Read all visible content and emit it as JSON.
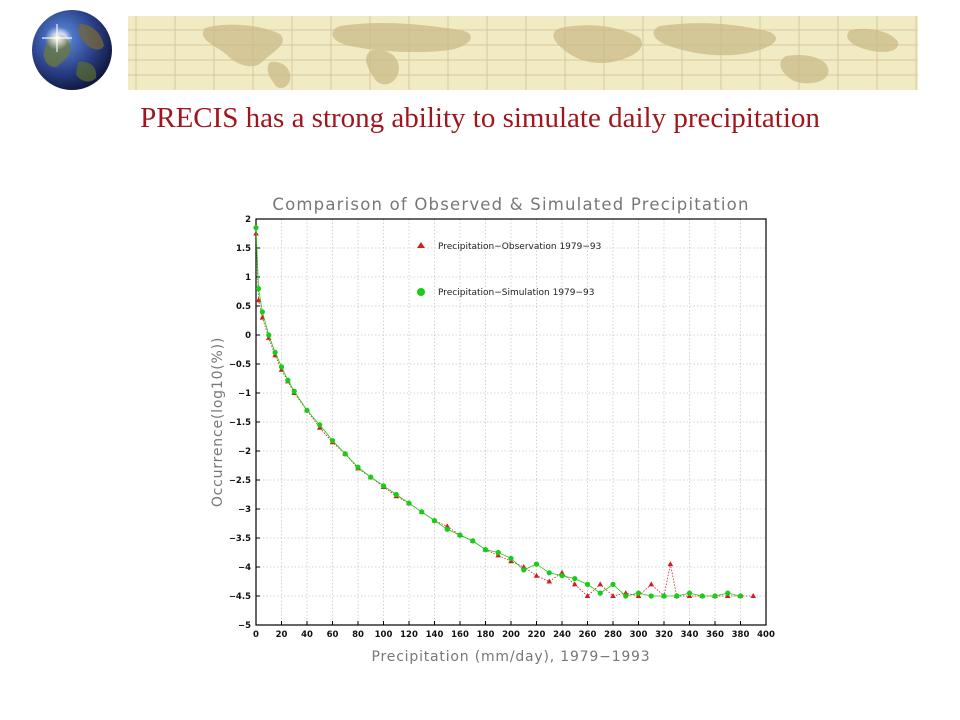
{
  "slide": {
    "title": "PRECIS has a strong ability to simulate daily precipitation"
  },
  "colors": {
    "title": "#a0161e",
    "observation": "#d11f1f",
    "simulation": "#18cc18",
    "banner_bg": "#f1ebc4",
    "banner_line": "#d8c79a",
    "banner_land": "#c9b885"
  },
  "icons": {
    "logo": "globe-icon"
  },
  "chart_data": {
    "type": "scatter",
    "title": "Comparison of Observed & Simulated Precipitation",
    "xlabel": "Precipitation (mm/day), 1979−1993",
    "ylabel": "Occurrence(log10(%))",
    "xlim": [
      0,
      400
    ],
    "ylim": [
      -5,
      2
    ],
    "xticks": [
      "0",
      "20",
      "40",
      "60",
      "80",
      "100",
      "120",
      "140",
      "160",
      "180",
      "200",
      "220",
      "240",
      "260",
      "280",
      "300",
      "320",
      "340",
      "360",
      "380",
      "400"
    ],
    "yticks": [
      "2",
      "1.5",
      "1",
      "0.5",
      "0",
      "−0.5",
      "−1",
      "−1.5",
      "−2",
      "−2.5",
      "−3",
      "−3.5",
      "−4",
      "−4.5",
      "−5"
    ],
    "grid": true,
    "legend_position": "top-right",
    "series": [
      {
        "name": "Precipitation−Observation 1979−93",
        "marker": "triangle",
        "color": "#d11f1f",
        "points": [
          [
            0,
            1.75
          ],
          [
            2,
            0.6
          ],
          [
            5,
            0.3
          ],
          [
            10,
            -0.05
          ],
          [
            15,
            -0.35
          ],
          [
            20,
            -0.6
          ],
          [
            25,
            -0.8
          ],
          [
            30,
            -1.0
          ],
          [
            40,
            -1.3
          ],
          [
            50,
            -1.6
          ],
          [
            60,
            -1.85
          ],
          [
            70,
            -2.05
          ],
          [
            80,
            -2.3
          ],
          [
            90,
            -2.45
          ],
          [
            100,
            -2.62
          ],
          [
            110,
            -2.78
          ],
          [
            120,
            -2.9
          ],
          [
            130,
            -3.05
          ],
          [
            140,
            -3.2
          ],
          [
            150,
            -3.3
          ],
          [
            160,
            -3.45
          ],
          [
            170,
            -3.55
          ],
          [
            180,
            -3.7
          ],
          [
            190,
            -3.8
          ],
          [
            200,
            -3.9
          ],
          [
            210,
            -4.0
          ],
          [
            220,
            -4.15
          ],
          [
            230,
            -4.25
          ],
          [
            240,
            -4.1
          ],
          [
            250,
            -4.3
          ],
          [
            260,
            -4.5
          ],
          [
            270,
            -4.3
          ],
          [
            280,
            -4.5
          ],
          [
            290,
            -4.45
          ],
          [
            300,
            -4.5
          ],
          [
            310,
            -4.3
          ],
          [
            320,
            -4.5
          ],
          [
            325,
            -3.95
          ],
          [
            330,
            -4.5
          ],
          [
            340,
            -4.5
          ],
          [
            350,
            -4.5
          ],
          [
            360,
            -4.5
          ],
          [
            370,
            -4.5
          ],
          [
            380,
            -4.5
          ],
          [
            390,
            -4.5
          ]
        ]
      },
      {
        "name": "Precipitation−Simulation 1979−93",
        "marker": "circle",
        "color": "#18cc18",
        "points": [
          [
            0,
            1.85
          ],
          [
            2,
            0.8
          ],
          [
            5,
            0.4
          ],
          [
            10,
            0.0
          ],
          [
            15,
            -0.3
          ],
          [
            20,
            -0.55
          ],
          [
            25,
            -0.78
          ],
          [
            30,
            -0.97
          ],
          [
            40,
            -1.3
          ],
          [
            50,
            -1.55
          ],
          [
            60,
            -1.82
          ],
          [
            70,
            -2.05
          ],
          [
            80,
            -2.28
          ],
          [
            90,
            -2.45
          ],
          [
            100,
            -2.6
          ],
          [
            110,
            -2.75
          ],
          [
            120,
            -2.9
          ],
          [
            130,
            -3.05
          ],
          [
            140,
            -3.2
          ],
          [
            150,
            -3.35
          ],
          [
            160,
            -3.45
          ],
          [
            170,
            -3.55
          ],
          [
            180,
            -3.7
          ],
          [
            190,
            -3.75
          ],
          [
            200,
            -3.85
          ],
          [
            210,
            -4.05
          ],
          [
            220,
            -3.95
          ],
          [
            230,
            -4.1
          ],
          [
            240,
            -4.15
          ],
          [
            250,
            -4.2
          ],
          [
            260,
            -4.3
          ],
          [
            270,
            -4.45
          ],
          [
            280,
            -4.3
          ],
          [
            290,
            -4.5
          ],
          [
            300,
            -4.45
          ],
          [
            310,
            -4.5
          ],
          [
            320,
            -4.5
          ],
          [
            330,
            -4.5
          ],
          [
            340,
            -4.45
          ],
          [
            350,
            -4.5
          ],
          [
            360,
            -4.5
          ],
          [
            370,
            -4.45
          ],
          [
            380,
            -4.5
          ]
        ]
      }
    ]
  }
}
